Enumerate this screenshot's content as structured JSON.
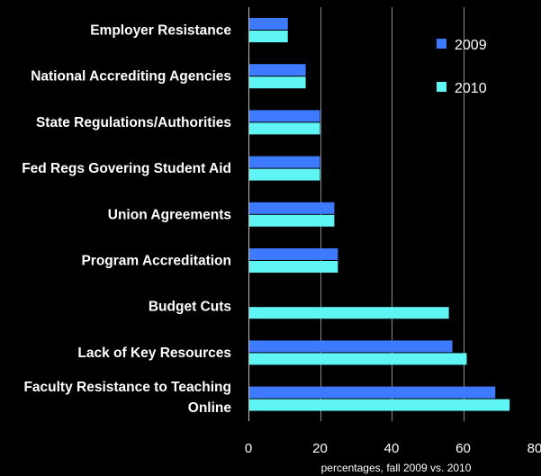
{
  "chart_data": {
    "type": "bar",
    "orientation": "horizontal",
    "categories": [
      "Employer Resistance",
      "National Accrediting Agencies",
      "State Regulations/Authorities",
      "Fed Regs Govering Student Aid",
      "Union Agreements",
      "Program Accreditation",
      "Budget Cuts",
      "Lack of Key Resources",
      "Faculty Resistance to Teaching Online"
    ],
    "series": [
      {
        "name": "2009",
        "color": "#3d7aff",
        "values": [
          11,
          16,
          20,
          20,
          24,
          25,
          null,
          57,
          69
        ]
      },
      {
        "name": "2010",
        "color": "#5ff5f5",
        "values": [
          11,
          16,
          20,
          20,
          24,
          25,
          56,
          61,
          73
        ]
      }
    ],
    "xlabel": "percentages, fall 2009 vs. 2010",
    "xlim": [
      0,
      80
    ],
    "xticks": [
      0,
      20,
      40,
      60,
      80
    ],
    "grid": true,
    "legend_position": "top-right",
    "background": "#000000",
    "grid_color": "#8a8a8a"
  }
}
